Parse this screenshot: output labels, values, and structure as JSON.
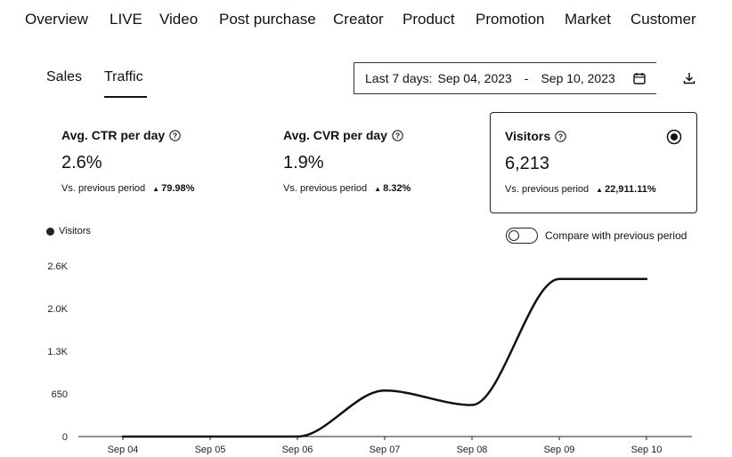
{
  "topnav": {
    "items": [
      "Overview",
      "LIVE",
      "Video",
      "Post purchase",
      "Creator",
      "Product",
      "Promotion",
      "Market",
      "Customer"
    ]
  },
  "subtabs": {
    "sales": "Sales",
    "traffic": "Traffic",
    "active": "Traffic"
  },
  "daterange": {
    "label": "Last 7 days:",
    "start": "Sep 04, 2023",
    "separator": "-",
    "end": "Sep 10, 2023",
    "icon": "calendar-icon"
  },
  "toolbar": {
    "download_icon": "download-icon"
  },
  "metrics": [
    {
      "title": "Avg. CTR per day",
      "value": "2.6%",
      "compare_label": "Vs. previous period",
      "delta": "79.98%",
      "selected": false
    },
    {
      "title": "Avg. CVR per day",
      "value": "1.9%",
      "compare_label": "Vs. previous period",
      "delta": "8.32%",
      "selected": false
    },
    {
      "title": "Visitors",
      "value": "6,213",
      "compare_label": "Vs. previous period",
      "delta": "22,911.11%",
      "selected": true
    }
  ],
  "legend": {
    "label": "Visitors"
  },
  "compare_toggle": {
    "label": "Compare with previous period",
    "on": false
  },
  "colors": {
    "line": "#111111",
    "text": "#111111",
    "background": "#ffffff"
  },
  "chart_data": {
    "type": "line",
    "categories": [
      "Sep 04",
      "Sep 05",
      "Sep 06",
      "Sep 07",
      "Sep 08",
      "Sep 09",
      "Sep 10"
    ],
    "series": [
      {
        "name": "Visitors",
        "values": [
          0,
          0,
          0,
          700,
          480,
          2400,
          2400
        ]
      }
    ],
    "yticks": [
      "0",
      "650",
      "1.3K",
      "2.0K",
      "2.6K"
    ],
    "ytick_values": [
      0,
      650,
      1300,
      1950,
      2600
    ],
    "ylim": [
      0,
      2600
    ],
    "title": "",
    "xlabel": "",
    "ylabel": "",
    "grid": false,
    "legend_position": "top-left"
  }
}
